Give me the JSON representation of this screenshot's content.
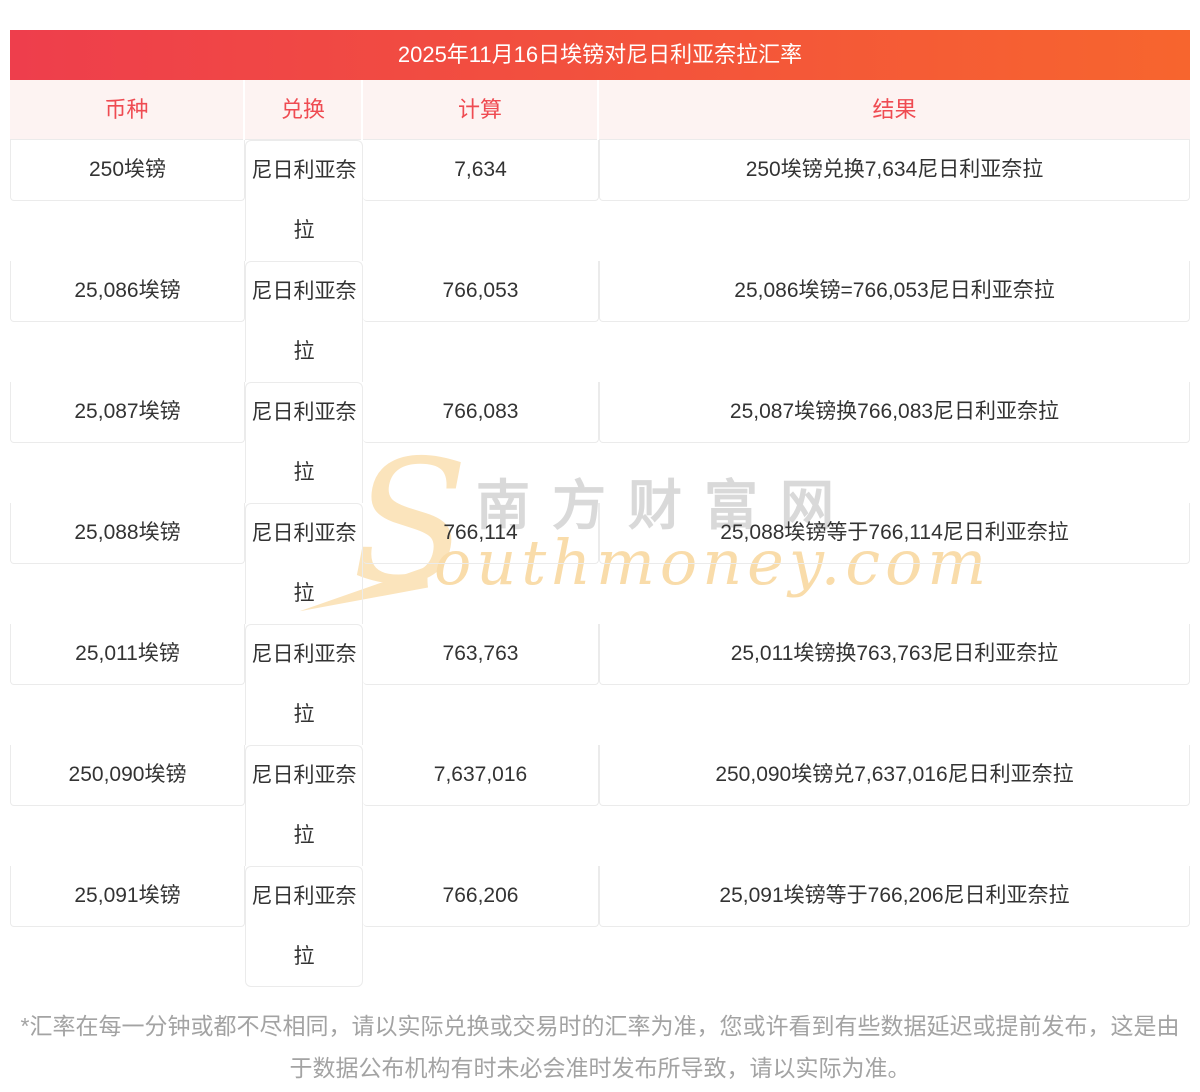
{
  "page": {
    "title": "2025年11月16日埃镑对尼日利亚奈拉汇率",
    "disclaimer": "*汇率在每一分钟或都不尽相同，请以实际兑换或交易时的汇率为准，您或许看到有些数据延迟或提前发布，这是由于数据公布机构有时未必会准时发布所导致，请以实际为准。"
  },
  "table": {
    "columns": [
      "币种",
      "兑换",
      "计算",
      "结果"
    ],
    "rows": [
      {
        "currency": "250埃镑",
        "swap": "尼日利亚奈拉",
        "calc": "7,634",
        "result": "250埃镑兑换7,634尼日利亚奈拉"
      },
      {
        "currency": "25,086埃镑",
        "swap": "尼日利亚奈拉",
        "calc": "766,053",
        "result": "25,086埃镑=766,053尼日利亚奈拉"
      },
      {
        "currency": "25,087埃镑",
        "swap": "尼日利亚奈拉",
        "calc": "766,083",
        "result": "25,087埃镑换766,083尼日利亚奈拉"
      },
      {
        "currency": "25,088埃镑",
        "swap": "尼日利亚奈拉",
        "calc": "766,114",
        "result": "25,088埃镑等于766,114尼日利亚奈拉"
      },
      {
        "currency": "25,011埃镑",
        "swap": "尼日利亚奈拉",
        "calc": "763,763",
        "result": "25,011埃镑换763,763尼日利亚奈拉"
      },
      {
        "currency": "250,090埃镑",
        "swap": "尼日利亚奈拉",
        "calc": "7,637,016",
        "result": "250,090埃镑兑7,637,016尼日利亚奈拉"
      },
      {
        "currency": "25,091埃镑",
        "swap": "尼日利亚奈拉",
        "calc": "766,206",
        "result": "25,091埃镑等于766,206尼日利亚奈拉"
      }
    ]
  },
  "watermark": {
    "swoosh": "S",
    "cn": "南方财富网",
    "en": "outhmoney.com"
  },
  "colors": {
    "title_gradient_start": "#ee3e4c",
    "title_gradient_end": "#f7652e",
    "header_bg": "#fdf3f2",
    "header_text": "#ef4b52",
    "cell_border": "#ebebeb",
    "body_text": "#333333",
    "disclaimer_text": "#a3a3a3",
    "watermark_tan": "#fbe4bc",
    "watermark_gray": "#d9d9d9"
  }
}
